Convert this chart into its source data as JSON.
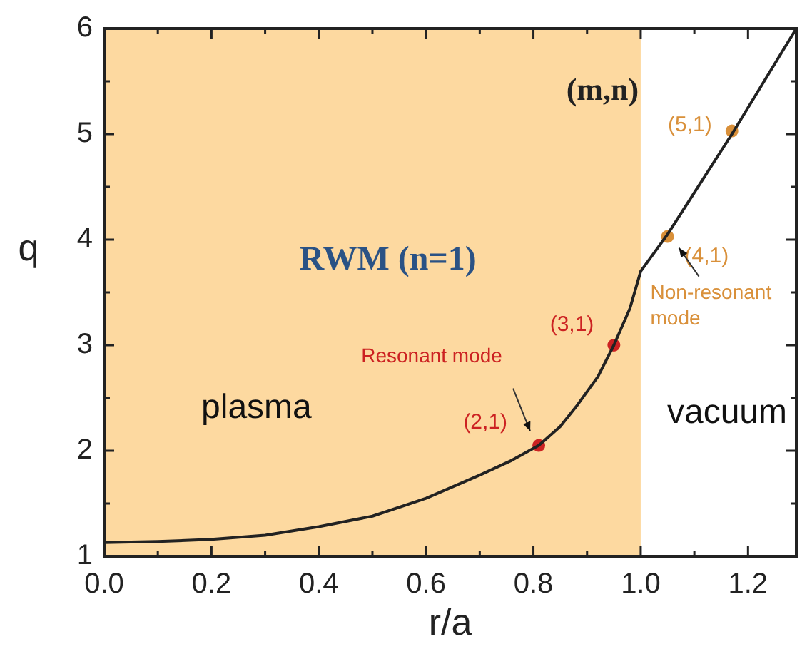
{
  "chart_data": {
    "type": "line",
    "xlabel": "r/a",
    "ylabel": "q",
    "xlim": [
      0,
      1.29
    ],
    "ylim": [
      1,
      6
    ],
    "xticks": [
      {
        "value": 0,
        "label": "0.0"
      },
      {
        "value": 0.1,
        "label": null
      },
      {
        "value": 0.2,
        "label": "0.2"
      },
      {
        "value": 0.3,
        "label": null
      },
      {
        "value": 0.4,
        "label": "0.4"
      },
      {
        "value": 0.5,
        "label": null
      },
      {
        "value": 0.6,
        "label": "0.6"
      },
      {
        "value": 0.7,
        "label": null
      },
      {
        "value": 0.8,
        "label": "0.8"
      },
      {
        "value": 0.9,
        "label": null
      },
      {
        "value": 1,
        "label": "1.0"
      },
      {
        "value": 1.1,
        "label": null
      },
      {
        "value": 1.2,
        "label": "1.2"
      }
    ],
    "yticks": [
      1,
      {
        "value": 1.5,
        "label": null
      },
      2,
      {
        "value": 2.5,
        "label": null
      },
      3,
      {
        "value": 3.5,
        "label": null
      },
      4,
      {
        "value": 4.5,
        "label": null
      },
      5,
      {
        "value": 5.5,
        "label": null
      },
      6
    ],
    "series": [
      {
        "color": "#222222",
        "marker": "none",
        "x": [
          0,
          0.1,
          0.2,
          0.3,
          0.4,
          0.5,
          0.6,
          0.7,
          0.76,
          0.81,
          0.85,
          0.88,
          0.92,
          0.95,
          0.98,
          1.0,
          1.05,
          1.17,
          1.29
        ],
        "values": [
          1.13,
          1.14,
          1.16,
          1.2,
          1.28,
          1.38,
          1.55,
          1.77,
          1.91,
          2.05,
          2.23,
          2.42,
          2.7,
          3.0,
          3.35,
          3.7,
          4.05,
          5.0,
          6.0
        ]
      },
      {
        "type": "scatter",
        "marker": "circle",
        "name": "Resonant mode",
        "color": "#cc2222",
        "x": [
          0.81,
          0.95
        ],
        "values": [
          2.05,
          3.0
        ]
      },
      {
        "type": "scatter",
        "marker": "circle",
        "name": "Non-resonant mode",
        "color": "#d9903a",
        "x": [
          1.05,
          1.17
        ],
        "values": [
          4.03,
          5.03
        ]
      }
    ],
    "bands": [
      {
        "axis": "x",
        "from": 0,
        "to": 1,
        "color": "#fdd9a0"
      }
    ],
    "annotations": [
      "(m,n)",
      "RWM (n=1)",
      "plasma",
      "vacuum",
      {
        "text": "(2,1)",
        "x": 0.81,
        "y": 2.05
      },
      {
        "text": "(3,1)",
        "x": 0.95,
        "y": 3.0
      },
      {
        "text": "(4,1)",
        "x": 1.05,
        "y": 4.03
      },
      {
        "text": "(5,1)",
        "x": 1.17,
        "y": 5.03
      }
    ],
    "legend": false,
    "grid": false
  }
}
